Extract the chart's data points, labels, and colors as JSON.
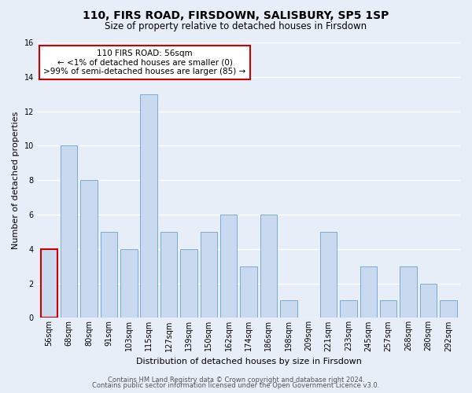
{
  "title": "110, FIRS ROAD, FIRSDOWN, SALISBURY, SP5 1SP",
  "subtitle": "Size of property relative to detached houses in Firsdown",
  "xlabel": "Distribution of detached houses by size in Firsdown",
  "ylabel": "Number of detached properties",
  "bar_labels": [
    "56sqm",
    "68sqm",
    "80sqm",
    "91sqm",
    "103sqm",
    "115sqm",
    "127sqm",
    "139sqm",
    "150sqm",
    "162sqm",
    "174sqm",
    "186sqm",
    "198sqm",
    "209sqm",
    "221sqm",
    "233sqm",
    "245sqm",
    "257sqm",
    "268sqm",
    "280sqm",
    "292sqm"
  ],
  "bar_values": [
    4,
    10,
    8,
    5,
    4,
    13,
    5,
    4,
    5,
    6,
    3,
    6,
    1,
    0,
    5,
    1,
    3,
    1,
    3,
    2,
    1
  ],
  "bar_color": "#c9d9f0",
  "bar_edge_color": "#7aaad4",
  "highlighted_bar_index": 0,
  "highlight_edge_color": "#cc0000",
  "annotation_text": "110 FIRS ROAD: 56sqm\n← <1% of detached houses are smaller (0)\n>99% of semi-detached houses are larger (85) →",
  "annotation_box_color": "#ffffff",
  "annotation_box_edge_color": "#cc0000",
  "ylim": [
    0,
    16
  ],
  "yticks": [
    0,
    2,
    4,
    6,
    8,
    10,
    12,
    14,
    16
  ],
  "footer_line1": "Contains HM Land Registry data © Crown copyright and database right 2024.",
  "footer_line2": "Contains public sector information licensed under the Open Government Licence v3.0.",
  "fig_background_color": "#e8eef8",
  "plot_background_color": "#e8eef8",
  "grid_color": "#ffffff",
  "title_fontsize": 10,
  "subtitle_fontsize": 8.5,
  "axis_label_fontsize": 8,
  "tick_fontsize": 7,
  "annotation_fontsize": 7.5,
  "footer_fontsize": 6
}
